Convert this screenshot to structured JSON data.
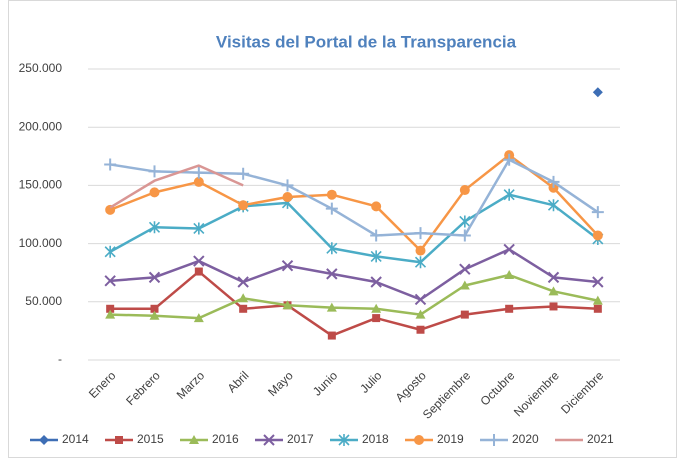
{
  "chart_data": {
    "type": "line",
    "title": "Visitas del Portal de la Transparencia",
    "categories": [
      "Enero",
      "Febrero",
      "Marzo",
      "Abril",
      "Mayo",
      "Junio",
      "Julio",
      "Agosto",
      "Septiembre",
      "Octubre",
      "Noviembre",
      "Diciembre"
    ],
    "ylim": [
      0,
      250000
    ],
    "yticks": [
      {
        "value": 0,
        "label": "-"
      },
      {
        "value": 50000,
        "label": "50.000"
      },
      {
        "value": 100000,
        "label": "100.000"
      },
      {
        "value": 150000,
        "label": "150.000"
      },
      {
        "value": 200000,
        "label": "200.000"
      },
      {
        "value": 250000,
        "label": "250.000"
      }
    ],
    "grid": true,
    "legend": "bottom",
    "series": [
      {
        "name": "2014",
        "color": "#3d6eb5",
        "marker": "diamond",
        "values": [
          null,
          null,
          null,
          null,
          null,
          null,
          null,
          null,
          null,
          null,
          null,
          230000
        ]
      },
      {
        "name": "2015",
        "color": "#be4b48",
        "marker": "square",
        "values": [
          44000,
          44000,
          76000,
          44000,
          47000,
          21000,
          36000,
          26000,
          39000,
          44000,
          46000,
          44000
        ]
      },
      {
        "name": "2016",
        "color": "#9bbb59",
        "marker": "triangle",
        "values": [
          39000,
          38000,
          36000,
          53000,
          47000,
          45000,
          44000,
          39000,
          64000,
          73000,
          59000,
          51000
        ]
      },
      {
        "name": "2017",
        "color": "#7d5fa0",
        "marker": "x",
        "values": [
          68000,
          71000,
          85000,
          67000,
          81000,
          74000,
          67000,
          52000,
          78000,
          95000,
          71000,
          67000
        ]
      },
      {
        "name": "2018",
        "color": "#4bacc6",
        "marker": "star",
        "values": [
          93000,
          114000,
          113000,
          132000,
          135000,
          96000,
          89000,
          84000,
          119000,
          142000,
          133000,
          104000
        ]
      },
      {
        "name": "2019",
        "color": "#f79646",
        "marker": "circle",
        "values": [
          129000,
          144000,
          153000,
          133000,
          140000,
          142000,
          132000,
          94000,
          146000,
          176000,
          148000,
          107000
        ]
      },
      {
        "name": "2020",
        "color": "#95b3d7",
        "marker": "plus",
        "values": [
          168000,
          162000,
          161000,
          160000,
          150000,
          130000,
          107000,
          109000,
          107000,
          172000,
          153000,
          127000
        ]
      },
      {
        "name": "2021",
        "color": "#d99694",
        "marker": "none",
        "values": [
          131000,
          154000,
          167000,
          150000,
          null,
          null,
          null,
          null,
          null,
          null,
          null,
          null
        ]
      }
    ]
  }
}
